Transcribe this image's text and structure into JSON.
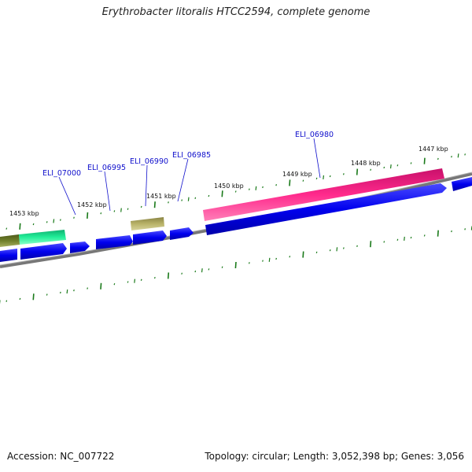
{
  "title": "Erythrobacter litoralis HTCC2594, complete genome",
  "accession": "Accession: NC_007722",
  "summary": "Topology: circular; Length: 3,052,398 bp; Genes: 3,056",
  "kbp_labels": [
    "1447 kbp",
    "1448 kbp",
    "1449 kbp",
    "1450 kbp",
    "1451 kbp",
    "1452 kbp",
    "1453 kbp"
  ],
  "gene_labels": [
    "ELI_06980",
    "ELI_06985",
    "ELI_06990",
    "ELI_06995",
    "ELI_07000"
  ],
  "colors": {
    "gene": "#0000ee",
    "rna_pink": "#ff2a8c",
    "tan": "#b8b268",
    "green_dark": "#6f7f2a",
    "green_teal": "#22ee99",
    "backbone": "#808080",
    "tick": "#1a7a1a",
    "label": "#1010cc"
  }
}
